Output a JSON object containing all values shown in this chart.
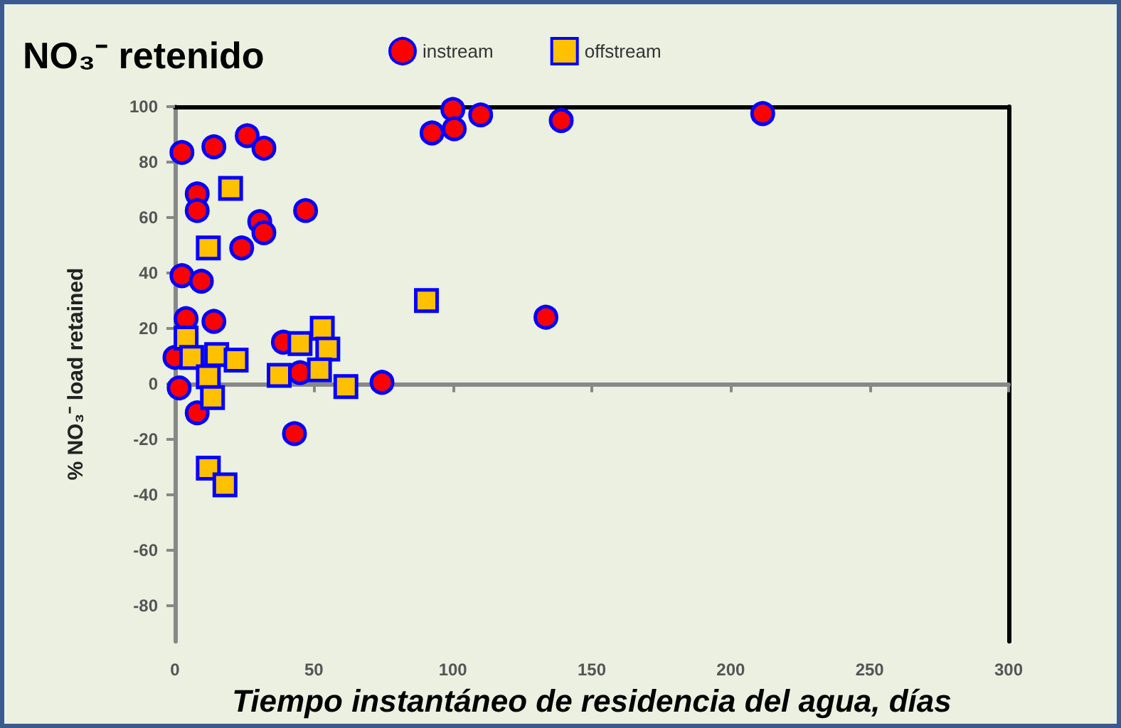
{
  "chart_data": {
    "type": "scatter",
    "title": "NO₃⁻ retenido",
    "xlabel": "Tiempo instantáneo de residencia del agua, días",
    "ylabel": "% NO₃⁻ load retained",
    "xlim": [
      0,
      300
    ],
    "xticks": [
      0,
      50,
      100,
      150,
      200,
      250,
      300
    ],
    "ylim": [
      -93,
      100
    ],
    "yticks": [
      -80,
      -60,
      -40,
      -20,
      0,
      20,
      40,
      60,
      80,
      100
    ],
    "legend": "top",
    "series": [
      {
        "name": "instream",
        "color": "#ff0000",
        "marker": "circle",
        "x": [
          2.5,
          14,
          26,
          32,
          8,
          8,
          47,
          30.5,
          32,
          24,
          2.5,
          9.5,
          4,
          14,
          0,
          1.5,
          8,
          43,
          39,
          45,
          74.5,
          133.5,
          92.5,
          100,
          110,
          100.5,
          139,
          211.5
        ],
        "values": [
          83.5,
          85.5,
          89.5,
          85,
          68.5,
          62.5,
          62.5,
          58.5,
          54.5,
          49,
          39,
          37,
          23.5,
          22.5,
          9.5,
          -1.5,
          -10.5,
          -18,
          15,
          4,
          0.5,
          24,
          90.5,
          99,
          97,
          92,
          95,
          97.5
        ]
      },
      {
        "name": "offstream",
        "color": "#ffc000",
        "marker": "square",
        "x": [
          20,
          12,
          90.5,
          4,
          6,
          15,
          22,
          12,
          13.5,
          53,
          45,
          55,
          37.5,
          52,
          61.5,
          12,
          18
        ],
        "values": [
          70.5,
          49,
          30,
          16.5,
          9.5,
          10.5,
          8.5,
          2.5,
          -5,
          20,
          14.5,
          12.5,
          3,
          5,
          -1,
          -30.5,
          -36.5
        ]
      }
    ]
  }
}
